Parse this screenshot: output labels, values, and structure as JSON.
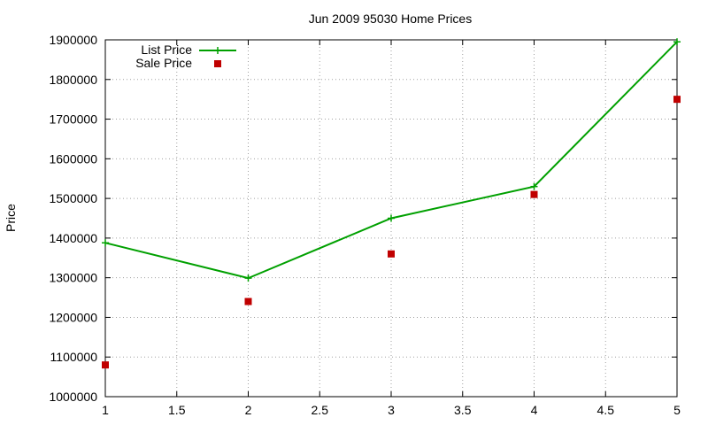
{
  "chart_data": {
    "type": "line",
    "title": "Jun 2009 95030 Home Prices",
    "xlabel": "",
    "ylabel": "Price",
    "xlim": [
      1,
      5
    ],
    "ylim": [
      1000000,
      1900000
    ],
    "xticks": [
      "1",
      "1.5",
      "2",
      "2.5",
      "3",
      "3.5",
      "4",
      "4.5",
      "5"
    ],
    "yticks": [
      "1000000",
      "1100000",
      "1200000",
      "1300000",
      "1400000",
      "1500000",
      "1600000",
      "1700000",
      "1800000",
      "1900000"
    ],
    "grid": true,
    "legend_position": "top-left",
    "series": [
      {
        "name": "List Price",
        "style": "line-points",
        "color": "#00a000",
        "x": [
          1,
          2,
          3,
          4,
          5
        ],
        "y": [
          1388000,
          1299000,
          1450000,
          1530000,
          1895000
        ]
      },
      {
        "name": "Sale Price",
        "style": "points",
        "color": "#c00000",
        "x": [
          1,
          2,
          3,
          4,
          5
        ],
        "y": [
          1080000,
          1240000,
          1360000,
          1510000,
          1750000
        ]
      }
    ]
  }
}
